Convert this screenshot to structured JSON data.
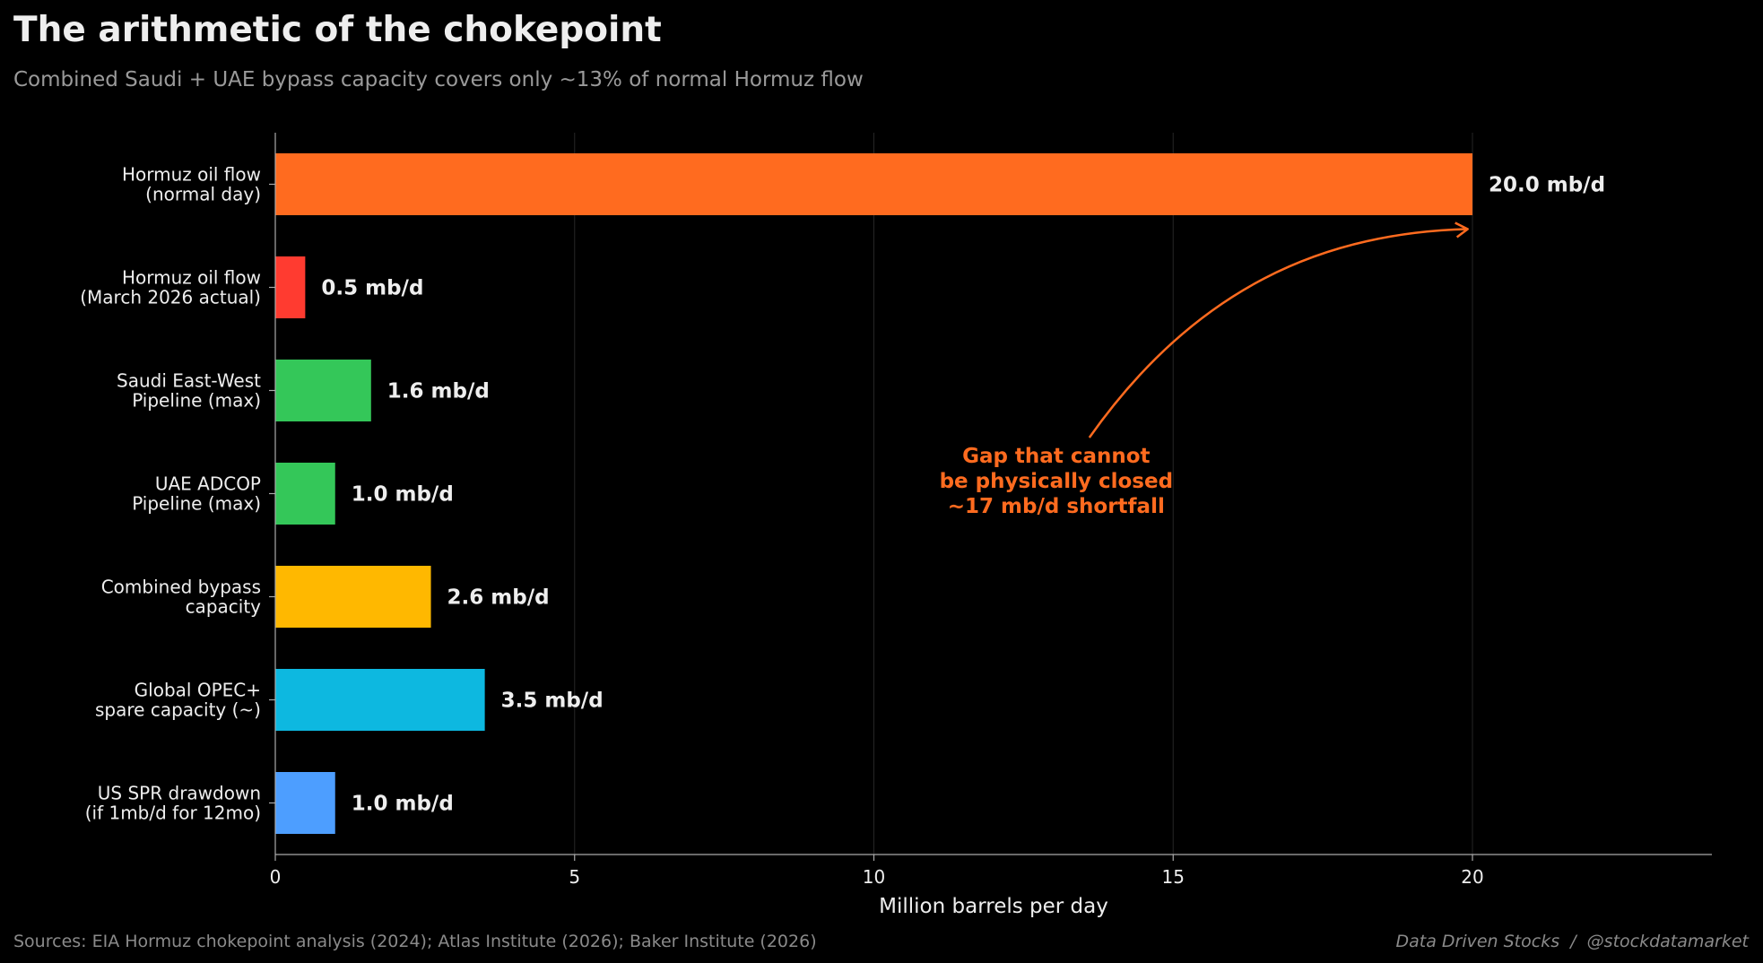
{
  "chart_data": {
    "type": "bar",
    "orientation": "horizontal",
    "title": "The arithmetic of the chokepoint",
    "subtitle": "Combined Saudi + UAE bypass capacity covers only ~13% of normal Hormuz flow",
    "xlabel": "Million barrels per day",
    "xlim": [
      0,
      24
    ],
    "xticks": [
      0,
      5,
      10,
      15,
      20
    ],
    "grid": "vertical",
    "value_suffix": " mb/d",
    "bars": [
      {
        "label": [
          "Hormuz oil flow",
          "(normal day)"
        ],
        "value": 20.0,
        "value_label": "20.0 mb/d",
        "color": "#ff6b1f"
      },
      {
        "label": [
          "Hormuz oil flow",
          "(March 2026 actual)"
        ],
        "value": 0.5,
        "value_label": "0.5 mb/d",
        "color": "#ff3b30"
      },
      {
        "label": [
          "Saudi East-West",
          "Pipeline (max)"
        ],
        "value": 1.6,
        "value_label": "1.6 mb/d",
        "color": "#34c759"
      },
      {
        "label": [
          "UAE ADCOP",
          "Pipeline (max)"
        ],
        "value": 1.0,
        "value_label": "1.0 mb/d",
        "color": "#34c759"
      },
      {
        "label": [
          "Combined bypass",
          "capacity"
        ],
        "value": 2.6,
        "value_label": "2.6 mb/d",
        "color": "#ffb800"
      },
      {
        "label": [
          "Global OPEC+",
          "spare capacity (~)"
        ],
        "value": 3.5,
        "value_label": "3.5 mb/d",
        "color": "#0db8e0"
      },
      {
        "label": [
          "US SPR drawdown",
          "(if 1mb/d for 12mo)"
        ],
        "value": 1.0,
        "value_label": "1.0 mb/d",
        "color": "#4d9eff"
      }
    ],
    "annotation": {
      "lines": [
        "Gap that cannot",
        "be physically closed",
        "~17 mb/d shortfall"
      ],
      "color": "#ff6b1f",
      "text_x": 13.6,
      "text_bar_pos": 3.0,
      "arrow_to": {
        "x": 19.95,
        "bar_pos": 0.5
      }
    },
    "sources": "Sources: EIA Hormuz chokepoint analysis (2024); Atlas Institute (2026); Baker Institute (2026)",
    "credit": "Data Driven Stocks  /  @stockdatamarket"
  }
}
